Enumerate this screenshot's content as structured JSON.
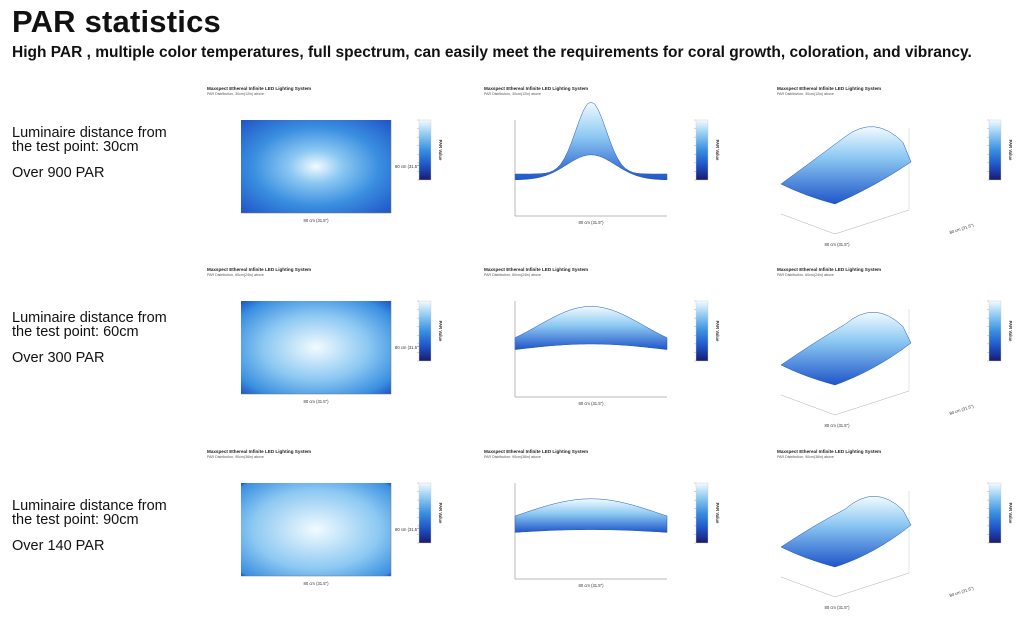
{
  "page": {
    "title": "PAR statistics",
    "subtitle": "High PAR , multiple color temperatures, full spectrum, can easily meet the requirements for coral growth, coloration, and vibrancy."
  },
  "rows": [
    {
      "distance_label": "Luminaire distance from the test point: 30cm",
      "par_label": "Over 900 PAR"
    },
    {
      "distance_label": "Luminaire distance from the test point: 60cm",
      "par_label": "Over 300 PAR"
    },
    {
      "distance_label": "Luminaire distance from the test point: 90cm",
      "par_label": "Over 140 PAR"
    }
  ],
  "panel_text": {
    "title": "Maxspect Ethereal Infinite LED Lighting System",
    "x_axis_label": "80 cm (31.5\")",
    "y_axis_label": "80 cm (31.5\")",
    "colorbar_label": "PAR Value"
  },
  "chart_data": [
    {
      "type": "heatmap",
      "view": "top",
      "distance_cm": 30,
      "subtitle": "PAR Distribution, 30cm(12in) above",
      "peak": 1.0,
      "falloff": 1.0
    },
    {
      "type": "area",
      "view": "side",
      "distance_cm": 30,
      "subtitle": "PAR Distribution, 30cm(12in) above",
      "peak": 1.0,
      "falloff": 1.0
    },
    {
      "type": "area",
      "view": "3d",
      "distance_cm": 30,
      "subtitle": "PAR Distribution, 30cm(12in) above",
      "peak": 1.0,
      "falloff": 1.0
    },
    {
      "type": "heatmap",
      "view": "top",
      "distance_cm": 60,
      "subtitle": "PAR Distribution, 60cm(24in) above",
      "peak": 0.55,
      "falloff": 0.55
    },
    {
      "type": "area",
      "view": "side",
      "distance_cm": 60,
      "subtitle": "PAR Distribution, 60cm(24in) above",
      "peak": 0.55,
      "falloff": 0.55
    },
    {
      "type": "area",
      "view": "3d",
      "distance_cm": 60,
      "subtitle": "PAR Distribution, 60cm(24in) above",
      "peak": 0.55,
      "falloff": 0.55
    },
    {
      "type": "heatmap",
      "view": "top",
      "distance_cm": 90,
      "subtitle": "PAR Distribution, 90cm(36in) above",
      "peak": 0.35,
      "falloff": 0.35
    },
    {
      "type": "area",
      "view": "side",
      "distance_cm": 90,
      "subtitle": "PAR Distribution, 90cm(36in) above",
      "peak": 0.35,
      "falloff": 0.35
    },
    {
      "type": "area",
      "view": "3d",
      "distance_cm": 90,
      "subtitle": "PAR Distribution, 90cm(36in) above",
      "peak": 0.35,
      "falloff": 0.35
    }
  ],
  "colors": {
    "colormap": [
      "#1a1a6e",
      "#1f55c8",
      "#3a8fe0",
      "#8cc8f2",
      "#f2fbff"
    ],
    "axis": "#888888"
  }
}
